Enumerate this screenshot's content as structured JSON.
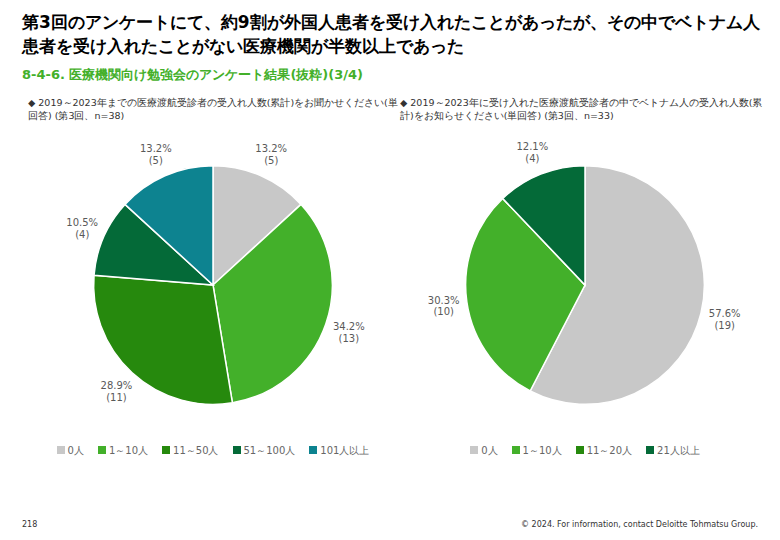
{
  "page": {
    "title": "第3回のアンケートにて、約9割が外国人患者を受け入れたことがあったが、その中でベトナム人患者を受け入れたことがない医療機関が半数以上であった",
    "subtitle": "8-4-6. 医療機関向け勉強会のアンケート結果(抜粋)(3/4)",
    "page_number": "218",
    "copyright": "© 2024. For information, contact Deloitte Tohmatsu Group."
  },
  "chart_data": [
    {
      "type": "pie",
      "title": "◆ 2019～2023年までの医療渡航受診者の受入れ人数(累計)をお聞かせください(単回答) (第3回、n=38)",
      "categories": [
        "0人",
        "1～10人",
        "11～50人",
        "51～100人",
        "101人以上"
      ],
      "values": [
        13.2,
        34.2,
        28.9,
        10.5,
        13.2
      ],
      "value_labels": [
        "13.2%",
        "34.2%",
        "28.9%",
        "10.5%",
        "13.2%"
      ],
      "count_labels": [
        "(5)",
        "(13)",
        "(11)",
        "(4)",
        "(5)"
      ],
      "colors": [
        "#c8c8c8",
        "#43b02a",
        "#26890d",
        "#046a38",
        "#0d8390"
      ],
      "data_labels": true,
      "legend": "bottom",
      "tick_labels": false
    },
    {
      "type": "pie",
      "title": "◆ 2019～2023年に受け入れた医療渡航受診者の中でベトナム人の受入れ人数(累計)をお知らせください(単回答) (第3回、n=33)",
      "categories": [
        "0人",
        "1～10人",
        "11～20人",
        "21人以上"
      ],
      "values": [
        57.6,
        30.3,
        0,
        12.1
      ],
      "value_labels": [
        "57.6%",
        "30.3%",
        null,
        "12.1%"
      ],
      "count_labels": [
        "(19)",
        "(10)",
        null,
        "(4)"
      ],
      "colors": [
        "#c8c8c8",
        "#43b02a",
        "#26890d",
        "#046a38"
      ],
      "data_labels": true,
      "legend": "bottom",
      "tick_labels": false
    }
  ]
}
